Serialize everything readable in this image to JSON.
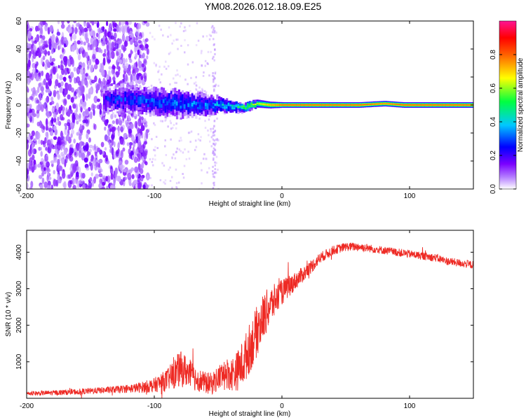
{
  "figure": {
    "title": "YM08.2026.012.18.09.E25"
  },
  "chart_data": [
    {
      "type": "heatmap",
      "title": "YM08.2026.012.18.09.E25",
      "xlabel": "Height of straight line (km)",
      "ylabel": "Frequency (Hz)",
      "xlim": [
        -200,
        150
      ],
      "ylim": [
        -60,
        60
      ],
      "xticks": [
        -200,
        -100,
        0,
        100
      ],
      "yticks": [
        -60,
        -40,
        -20,
        0,
        20,
        40,
        60
      ],
      "grid": false,
      "colorbar": {
        "label": "Normalized spectral amplitude",
        "range": [
          0,
          1
        ],
        "ticks": [
          0.0,
          0.2,
          0.4,
          0.6,
          0.8
        ],
        "tick_labels": [
          "0.0",
          "0.2",
          "0.4",
          "0.6",
          "0.8"
        ],
        "colormap": [
          "#ffffff",
          "#8a2be2",
          "#0000ff",
          "#00ffff",
          "#00ff00",
          "#ffff00",
          "#ff0000",
          "#ff1493"
        ]
      },
      "signal_band": [
        {
          "height_km": -140,
          "freq_hz": 4,
          "width_hz": 10,
          "amplitude": 0.25
        },
        {
          "height_km": -120,
          "freq_hz": 4,
          "width_hz": 10,
          "amplitude": 0.3
        },
        {
          "height_km": -100,
          "freq_hz": 2,
          "width_hz": 10,
          "amplitude": 0.35
        },
        {
          "height_km": -80,
          "freq_hz": 1,
          "width_hz": 10,
          "amplitude": 0.35
        },
        {
          "height_km": -60,
          "freq_hz": 0,
          "width_hz": 8,
          "amplitude": 0.35
        },
        {
          "height_km": -50,
          "freq_hz": 0,
          "width_hz": 6,
          "amplitude": 0.4
        },
        {
          "height_km": -40,
          "freq_hz": -1,
          "width_hz": 4,
          "amplitude": 0.5
        },
        {
          "height_km": -30,
          "freq_hz": -2,
          "width_hz": 3,
          "amplitude": 0.6
        },
        {
          "height_km": -20,
          "freq_hz": 1,
          "width_hz": 3,
          "amplitude": 0.7
        },
        {
          "height_km": -10,
          "freq_hz": 0,
          "width_hz": 2.5,
          "amplitude": 0.85
        },
        {
          "height_km": 0,
          "freq_hz": 0,
          "width_hz": 2,
          "amplitude": 0.95
        },
        {
          "height_km": 20,
          "freq_hz": 0,
          "width_hz": 2,
          "amplitude": 0.95
        },
        {
          "height_km": 40,
          "freq_hz": 0,
          "width_hz": 2,
          "amplitude": 0.95
        },
        {
          "height_km": 60,
          "freq_hz": 0,
          "width_hz": 2,
          "amplitude": 0.95
        },
        {
          "height_km": 80,
          "freq_hz": 1,
          "width_hz": 2,
          "amplitude": 0.9
        },
        {
          "height_km": 95,
          "freq_hz": 0,
          "width_hz": 2,
          "amplitude": 0.95
        },
        {
          "height_km": 120,
          "freq_hz": 0,
          "width_hz": 2,
          "amplitude": 0.95
        },
        {
          "height_km": 150,
          "freq_hz": 0,
          "width_hz": 2,
          "amplitude": 0.95
        }
      ],
      "noise_region": {
        "from_km": -200,
        "to_km": -105,
        "amplitude": 0.2
      }
    },
    {
      "type": "line",
      "title": "",
      "xlabel": "Height of straight line (km)",
      "ylabel": "SNR (10 * v/v)",
      "xlim": [
        -200,
        150
      ],
      "ylim": [
        0,
        4600
      ],
      "xticks": [
        -200,
        -100,
        0,
        100
      ],
      "yticks": [
        1000,
        2000,
        3000,
        4000
      ],
      "grid": false,
      "series": [
        {
          "name": "SNR",
          "color": "#ee2a24",
          "x": [
            -200,
            -180,
            -160,
            -140,
            -120,
            -110,
            -100,
            -90,
            -85,
            -80,
            -75,
            -70,
            -65,
            -60,
            -55,
            -50,
            -45,
            -40,
            -35,
            -30,
            -25,
            -20,
            -15,
            -10,
            -5,
            0,
            10,
            20,
            30,
            40,
            50,
            60,
            70,
            80,
            90,
            100,
            110,
            120,
            130,
            140,
            150
          ],
          "y": [
            130,
            150,
            180,
            220,
            260,
            300,
            360,
            500,
            650,
            800,
            750,
            600,
            500,
            420,
            400,
            550,
            700,
            650,
            750,
            1000,
            1400,
            1800,
            2200,
            2500,
            2700,
            2900,
            3200,
            3500,
            3850,
            4050,
            4150,
            4150,
            4100,
            4050,
            4000,
            3950,
            3900,
            3850,
            3750,
            3700,
            3650
          ],
          "noise_amplitude": [
            60,
            70,
            80,
            90,
            110,
            150,
            200,
            300,
            400,
            500,
            450,
            380,
            320,
            300,
            300,
            350,
            420,
            450,
            550,
            650,
            700,
            700,
            650,
            550,
            450,
            350,
            250,
            200,
            150,
            130,
            120,
            120,
            110,
            110,
            110,
            110,
            110,
            110,
            110,
            110,
            110
          ]
        }
      ]
    }
  ]
}
